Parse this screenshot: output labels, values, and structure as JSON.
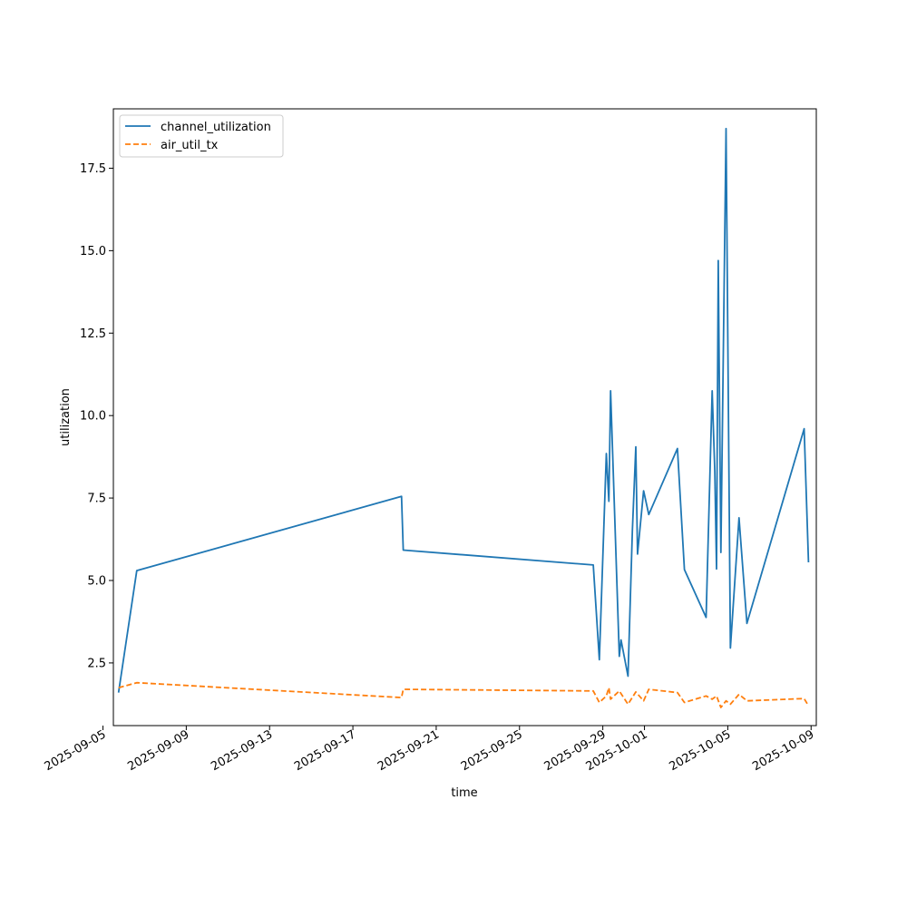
{
  "chart_data": {
    "type": "line",
    "title": "",
    "xlabel": "time",
    "ylabel": "utilization",
    "x_tick_labels": [
      "2025-09-05",
      "2025-09-09",
      "2025-09-13",
      "2025-09-17",
      "2025-09-21",
      "2025-09-25",
      "2025-09-29",
      "2025-10-01",
      "2025-10-05",
      "2025-10-09"
    ],
    "y_tick_labels": [
      "2.5",
      "5.0",
      "7.5",
      "10.0",
      "12.5",
      "15.0",
      "17.5"
    ],
    "xlim": [
      "2025-09-05T12:00",
      "2025-10-09T06:00"
    ],
    "ylim": [
      0.6,
      19.3
    ],
    "grid": false,
    "legend_position": "upper left",
    "series": [
      {
        "name": "channel_utilization",
        "color": "#1f77b4",
        "dash": "solid",
        "points": [
          [
            "2025-09-05T18:00",
            1.6
          ],
          [
            "2025-09-06T15:00",
            5.3
          ],
          [
            "2025-09-19T08:00",
            7.55
          ],
          [
            "2025-09-19T10:00",
            5.92
          ],
          [
            "2025-09-28T13:00",
            5.47
          ],
          [
            "2025-09-28T20:00",
            2.6
          ],
          [
            "2025-09-29T04:00",
            8.85
          ],
          [
            "2025-09-29T07:00",
            7.4
          ],
          [
            "2025-09-29T09:00",
            10.75
          ],
          [
            "2025-09-29T19:00",
            2.7
          ],
          [
            "2025-09-29T21:00",
            3.2
          ],
          [
            "2025-09-30T05:00",
            2.1
          ],
          [
            "2025-09-30T10:00",
            6.5
          ],
          [
            "2025-09-30T14:00",
            9.05
          ],
          [
            "2025-09-30T16:00",
            5.8
          ],
          [
            "2025-09-30T23:00",
            7.72
          ],
          [
            "2025-10-01T05:00",
            7.0
          ],
          [
            "2025-10-02T14:00",
            9.0
          ],
          [
            "2025-10-02T22:00",
            5.33
          ],
          [
            "2025-10-03T23:00",
            3.88
          ],
          [
            "2025-10-04T06:00",
            10.75
          ],
          [
            "2025-10-04T09:00",
            8.3
          ],
          [
            "2025-10-04T11:00",
            5.35
          ],
          [
            "2025-10-04T13:00",
            14.7
          ],
          [
            "2025-10-04T16:00",
            5.85
          ],
          [
            "2025-10-04T22:00",
            18.7
          ],
          [
            "2025-10-05T03:00",
            2.95
          ],
          [
            "2025-10-05T13:00",
            6.9
          ],
          [
            "2025-10-05T22:00",
            3.7
          ],
          [
            "2025-10-08T16:00",
            9.6
          ],
          [
            "2025-10-08T21:00",
            5.55
          ]
        ]
      },
      {
        "name": "air_util_tx",
        "color": "#ff7f0e",
        "dash": "dashed",
        "points": [
          [
            "2025-09-05T18:00",
            1.75
          ],
          [
            "2025-09-06T15:00",
            1.9
          ],
          [
            "2025-09-19T08:00",
            1.45
          ],
          [
            "2025-09-19T10:00",
            1.7
          ],
          [
            "2025-09-28T13:00",
            1.65
          ],
          [
            "2025-09-28T20:00",
            1.3
          ],
          [
            "2025-09-29T04:00",
            1.5
          ],
          [
            "2025-09-29T07:00",
            1.75
          ],
          [
            "2025-09-29T09:00",
            1.4
          ],
          [
            "2025-09-29T19:00",
            1.65
          ],
          [
            "2025-09-30T05:00",
            1.25
          ],
          [
            "2025-09-30T14:00",
            1.62
          ],
          [
            "2025-09-30T23:00",
            1.35
          ],
          [
            "2025-10-01T05:00",
            1.7
          ],
          [
            "2025-10-02T14:00",
            1.6
          ],
          [
            "2025-10-02T22:00",
            1.3
          ],
          [
            "2025-10-03T23:00",
            1.5
          ],
          [
            "2025-10-04T06:00",
            1.4
          ],
          [
            "2025-10-04T11:00",
            1.5
          ],
          [
            "2025-10-04T16:00",
            1.15
          ],
          [
            "2025-10-04T22:00",
            1.35
          ],
          [
            "2025-10-05T03:00",
            1.25
          ],
          [
            "2025-10-05T13:00",
            1.55
          ],
          [
            "2025-10-05T22:00",
            1.35
          ],
          [
            "2025-10-08T16:00",
            1.42
          ],
          [
            "2025-10-08T21:00",
            1.2
          ]
        ]
      }
    ]
  }
}
